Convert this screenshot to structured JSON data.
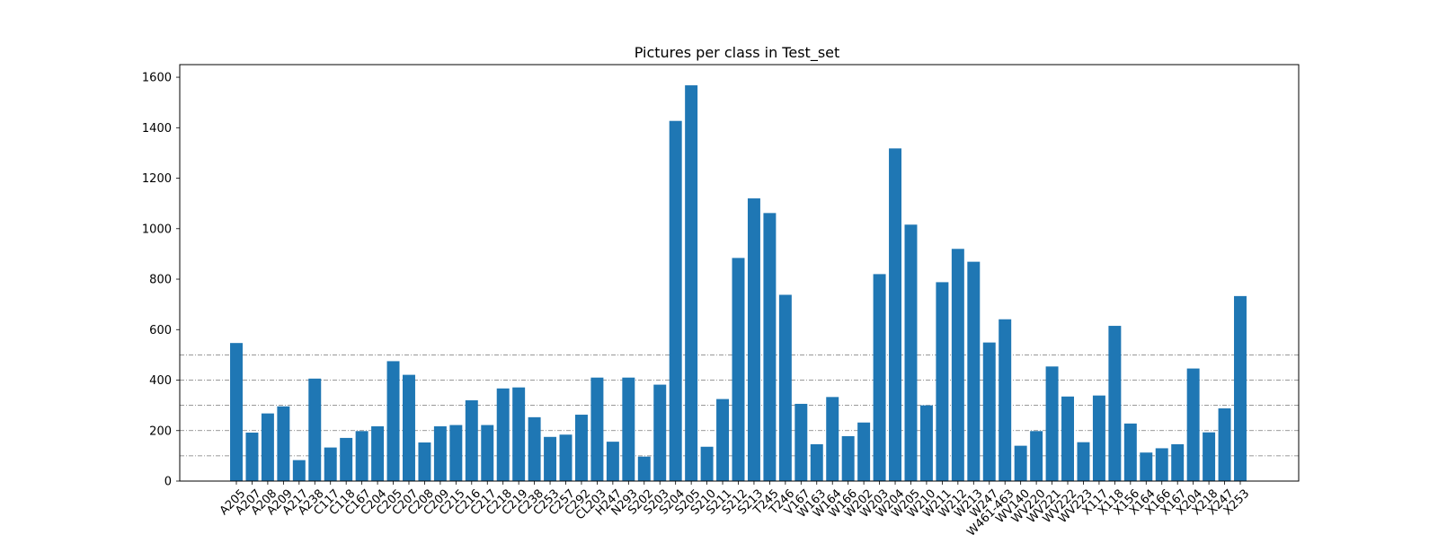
{
  "chart_data": {
    "type": "bar",
    "title": "Pictures per class in Test_set",
    "xlabel": "",
    "ylabel": "",
    "ylim": [
      0,
      1650
    ],
    "yticks": [
      0,
      200,
      400,
      600,
      800,
      1000,
      1200,
      1400,
      1600
    ],
    "reference_lines": [
      100,
      200,
      300,
      400,
      500
    ],
    "bar_color": "#1f77b4",
    "grid": false,
    "categories": [
      "A205",
      "A207",
      "A208",
      "A209",
      "A217",
      "A238",
      "C117",
      "C118",
      "C167",
      "C204",
      "C205",
      "C207",
      "C208",
      "C209",
      "C215",
      "C216",
      "C217",
      "C218",
      "C219",
      "C238",
      "C253",
      "C257",
      "C292",
      "CL203",
      "H247",
      "N293",
      "S202",
      "S203",
      "S204",
      "S205",
      "S210",
      "S211",
      "S212",
      "S213",
      "T245",
      "T246",
      "V167",
      "W163",
      "W164",
      "W166",
      "W202",
      "W203",
      "W204",
      "W205",
      "W210",
      "W211",
      "W212",
      "W213",
      "W247",
      "W461-463",
      "WV140",
      "WV220",
      "WV221",
      "WV222",
      "WV223",
      "X117",
      "X118",
      "X156",
      "X164",
      "X166",
      "X167",
      "X204",
      "X218",
      "X247",
      "X253"
    ],
    "values": [
      547,
      192,
      268,
      296,
      83,
      406,
      133,
      171,
      198,
      217,
      475,
      421,
      153,
      217,
      222,
      320,
      222,
      367,
      371,
      253,
      175,
      184,
      263,
      410,
      156,
      410,
      97,
      382,
      1427,
      1568,
      136,
      325,
      884,
      1120,
      1062,
      738,
      306,
      146,
      333,
      178,
      232,
      820,
      1318,
      1016,
      300,
      788,
      920,
      869,
      549,
      641,
      140,
      198,
      454,
      335,
      154,
      339,
      615,
      228,
      113,
      130,
      146,
      446,
      193,
      288,
      733
    ]
  }
}
